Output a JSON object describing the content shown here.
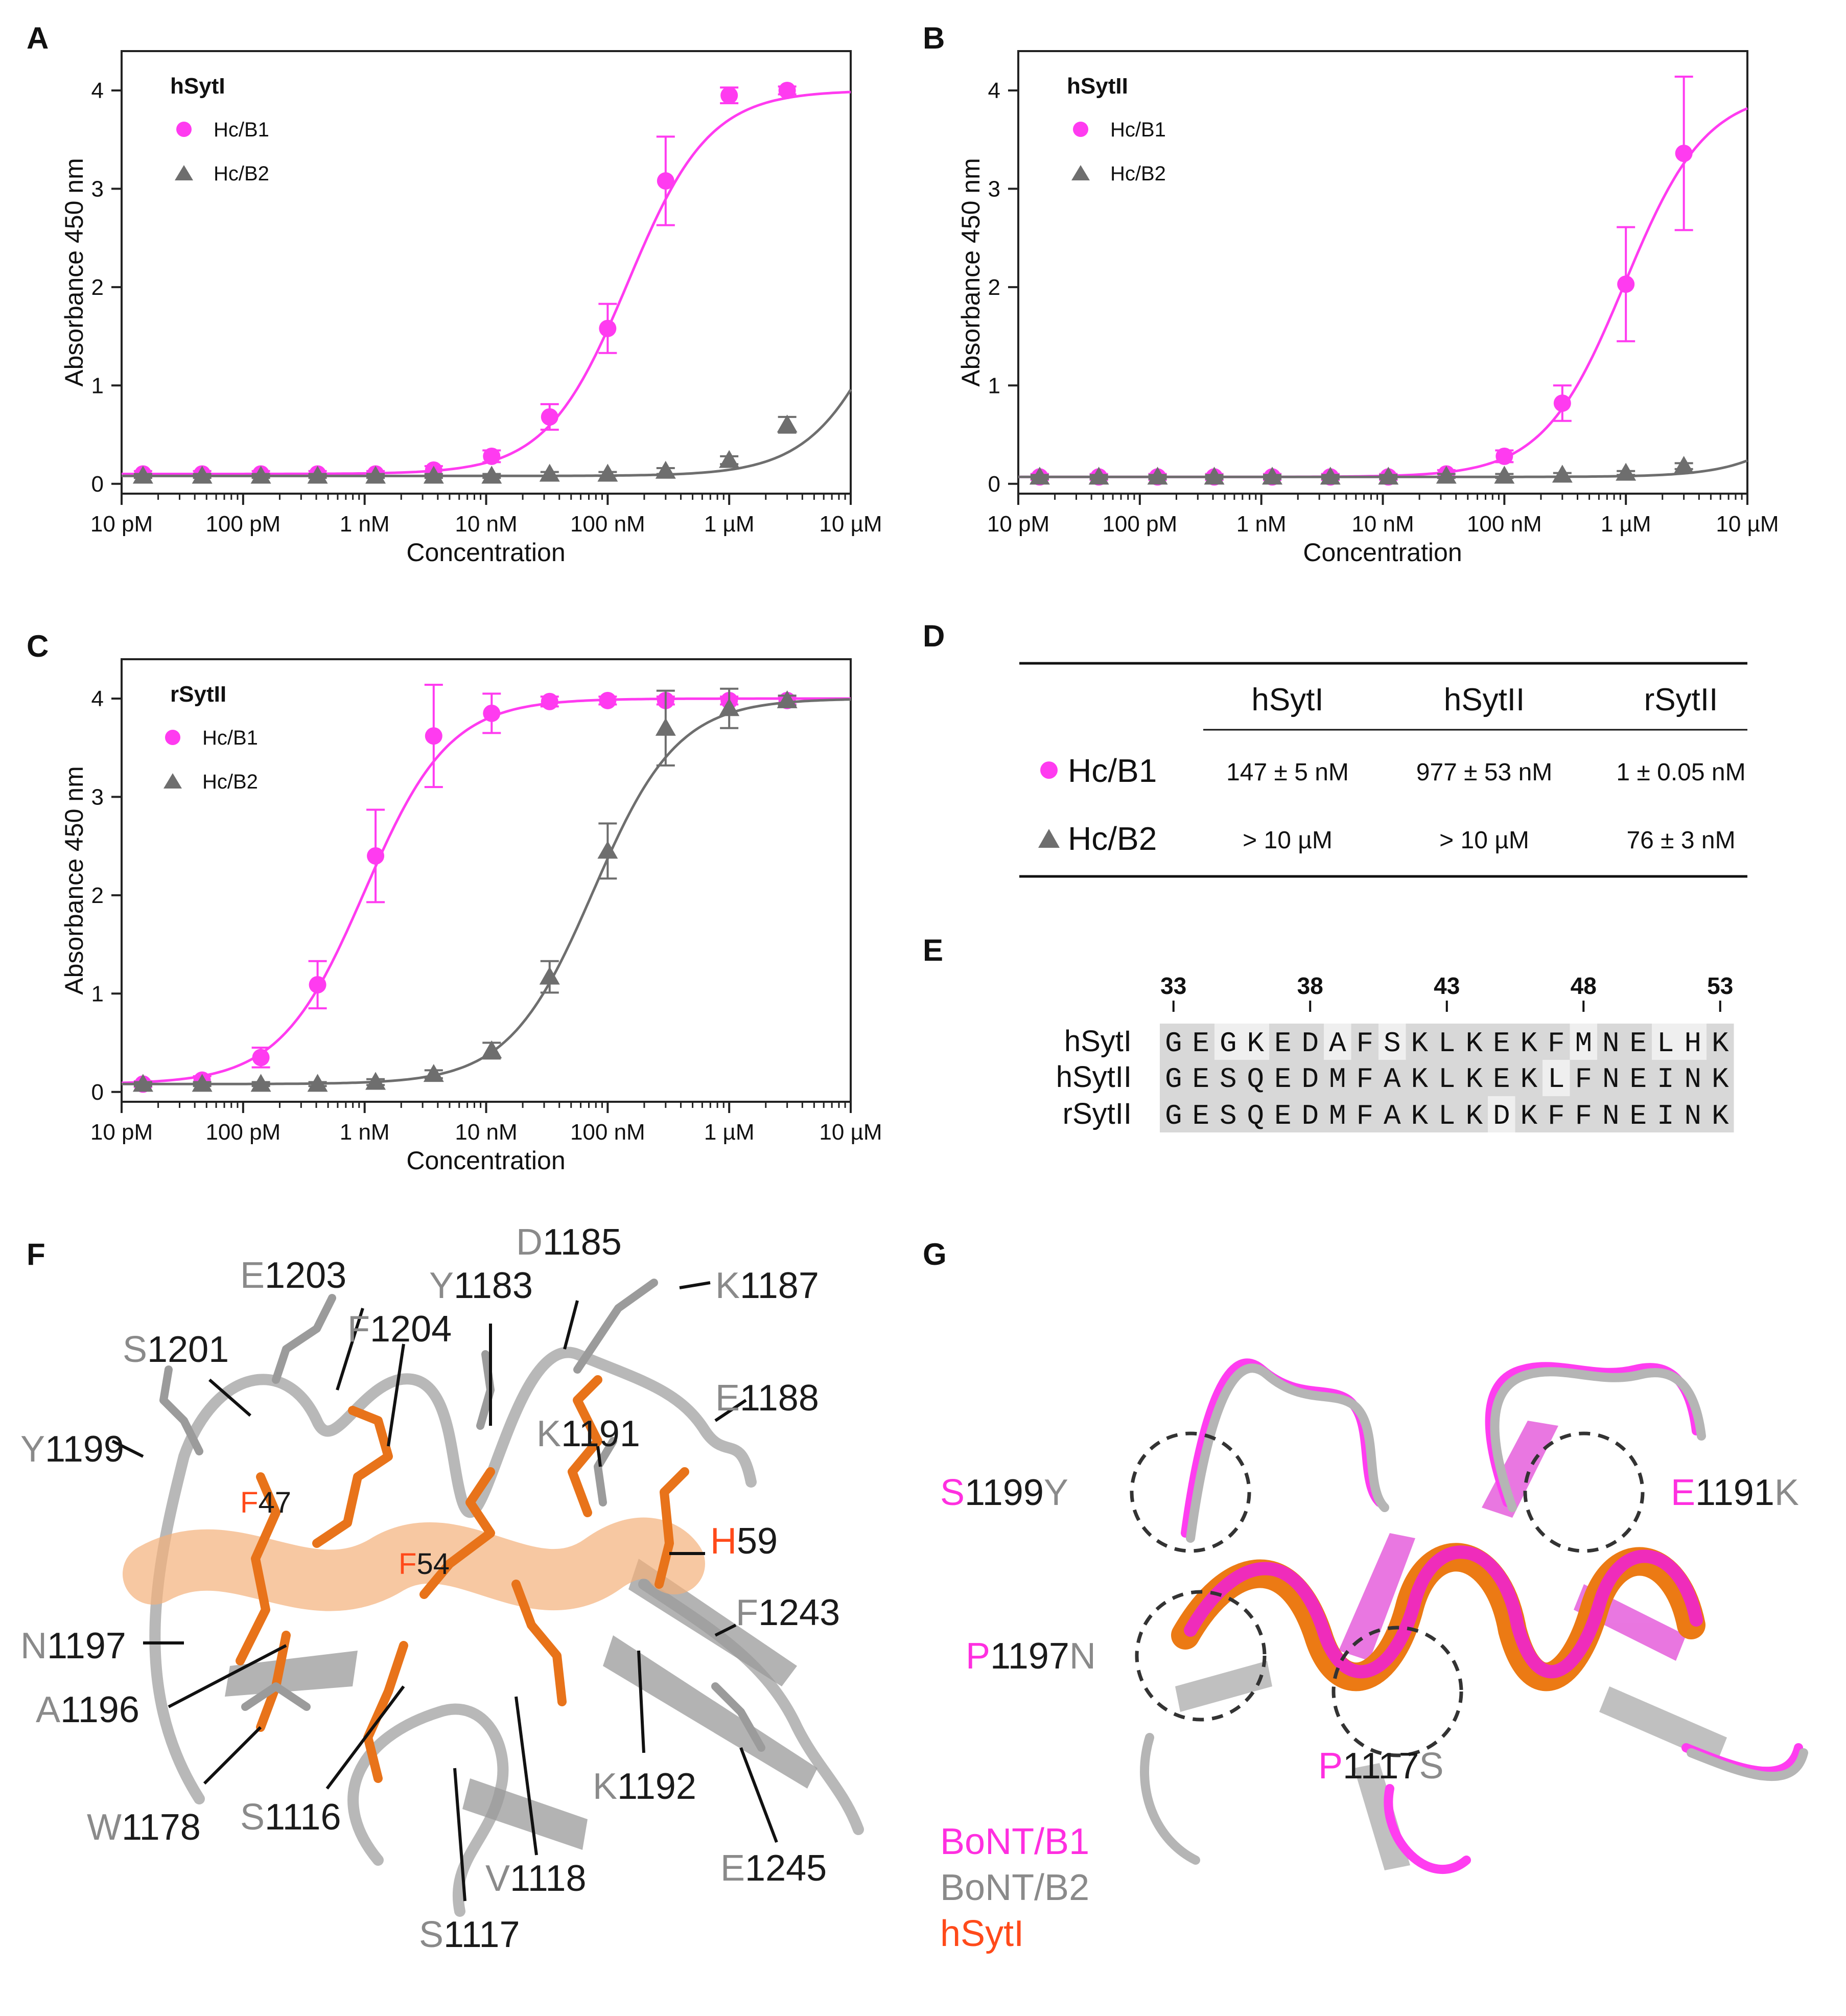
{
  "panels": {
    "A": "A",
    "B": "B",
    "C": "C",
    "D": "D",
    "E": "E",
    "F": "F",
    "G": "G"
  },
  "colors": {
    "hcb1": "#ff3bf0",
    "hcb2": "#6e6e6e",
    "orange": "#ee7b1c",
    "hsyt_label": "#ff4a1a",
    "grey_label": "#8a8a8a",
    "magenta_label": "#ff2fe0"
  },
  "chart_data": [
    {
      "panel": "A",
      "type": "scatter",
      "title": "hSytI",
      "xlabel": "Concentration",
      "ylabel": "Absorbance 450 nm",
      "xscale": "log",
      "xlim_nM": [
        0.01,
        10000
      ],
      "ylim": [
        -0.1,
        4.4
      ],
      "x_ticks": [
        "10 pM",
        "100 pM",
        "1 nM",
        "10 nM",
        "100 nM",
        "1 µM",
        "10 µM"
      ],
      "y_ticks": [
        "0",
        "1",
        "2",
        "3",
        "4"
      ],
      "legend": "top-left",
      "series": [
        {
          "name": "Hc/B1",
          "marker": "circle",
          "color": "hcb1",
          "x_nM": [
            0.015,
            0.046,
            0.14,
            0.41,
            1.23,
            3.7,
            11.1,
            33.3,
            100,
            300,
            1000,
            3000
          ],
          "y": [
            0.1,
            0.1,
            0.1,
            0.1,
            0.1,
            0.14,
            0.28,
            0.68,
            1.58,
            3.08,
            3.95,
            4.0
          ],
          "err": [
            0.03,
            0.03,
            0.03,
            0.03,
            0.03,
            0.04,
            0.06,
            0.13,
            0.25,
            0.45,
            0.08,
            0.04
          ],
          "fit": {
            "bottom": 0.1,
            "top": 4.0,
            "ec50_nM": 147,
            "hill": 1.3
          }
        },
        {
          "name": "Hc/B2",
          "marker": "triangle",
          "color": "hcb2",
          "x_nM": [
            0.015,
            0.046,
            0.14,
            0.41,
            1.23,
            3.7,
            11.1,
            33.3,
            100,
            300,
            1000,
            3000
          ],
          "y": [
            0.08,
            0.08,
            0.08,
            0.08,
            0.08,
            0.08,
            0.08,
            0.1,
            0.1,
            0.13,
            0.24,
            0.6
          ],
          "err": [
            0.02,
            0.02,
            0.02,
            0.02,
            0.02,
            0.02,
            0.02,
            0.02,
            0.02,
            0.03,
            0.04,
            0.08
          ],
          "fit": {
            "bottom": 0.08,
            "top": 4.0,
            "ec50_nM": 27000,
            "hill": 1.25
          }
        }
      ]
    },
    {
      "panel": "B",
      "type": "scatter",
      "title": "hSytII",
      "xlabel": "Concentration",
      "ylabel": "Absorbance 450 nm",
      "xscale": "log",
      "xlim_nM": [
        0.01,
        10000
      ],
      "ylim": [
        -0.1,
        4.4
      ],
      "x_ticks": [
        "10 pM",
        "100 pM",
        "1 nM",
        "10 nM",
        "100 nM",
        "1 µM",
        "10 µM"
      ],
      "y_ticks": [
        "0",
        "1",
        "2",
        "3",
        "4"
      ],
      "legend": "top-left",
      "series": [
        {
          "name": "Hc/B1",
          "marker": "circle",
          "color": "hcb1",
          "x_nM": [
            0.015,
            0.046,
            0.14,
            0.41,
            1.23,
            3.7,
            11.1,
            33.3,
            100,
            300,
            1000,
            3000
          ],
          "y": [
            0.07,
            0.07,
            0.07,
            0.07,
            0.07,
            0.07,
            0.07,
            0.1,
            0.28,
            0.82,
            2.03,
            3.36
          ],
          "err": [
            0.03,
            0.03,
            0.03,
            0.03,
            0.03,
            0.03,
            0.03,
            0.04,
            0.06,
            0.18,
            0.58,
            0.78
          ],
          "fit": {
            "bottom": 0.07,
            "top": 4.0,
            "ec50_nM": 977,
            "hill": 1.3
          }
        },
        {
          "name": "Hc/B2",
          "marker": "triangle",
          "color": "hcb2",
          "x_nM": [
            0.015,
            0.046,
            0.14,
            0.41,
            1.23,
            3.7,
            11.1,
            33.3,
            100,
            300,
            1000,
            3000
          ],
          "y": [
            0.07,
            0.07,
            0.07,
            0.07,
            0.07,
            0.07,
            0.07,
            0.08,
            0.08,
            0.09,
            0.11,
            0.18
          ],
          "err": [
            0.02,
            0.02,
            0.02,
            0.02,
            0.02,
            0.02,
            0.02,
            0.02,
            0.02,
            0.02,
            0.02,
            0.03
          ],
          "fit": {
            "bottom": 0.07,
            "top": 4.0,
            "ec50_nM": 110000,
            "hill": 1.3
          }
        }
      ]
    },
    {
      "panel": "C",
      "type": "scatter",
      "title": "rSytII",
      "xlabel": "Concentration",
      "ylabel": "Absorbance 450 nm",
      "xscale": "log",
      "xlim_nM": [
        0.01,
        10000
      ],
      "ylim": [
        -0.1,
        4.4
      ],
      "x_ticks": [
        "10 pM",
        "100 pM",
        "1 nM",
        "10 nM",
        "100 nM",
        "1 µM",
        "10 µM"
      ],
      "y_ticks": [
        "0",
        "1",
        "2",
        "3",
        "4"
      ],
      "legend": "top-left",
      "series": [
        {
          "name": "Hc/B1",
          "marker": "circle",
          "color": "hcb1",
          "x_nM": [
            0.015,
            0.046,
            0.14,
            0.41,
            1.23,
            3.7,
            11.1,
            33.3,
            100,
            300,
            1000,
            3000
          ],
          "y": [
            0.08,
            0.12,
            0.35,
            1.09,
            2.4,
            3.62,
            3.85,
            3.97,
            3.98,
            3.98,
            3.98,
            3.98
          ],
          "err": [
            0.03,
            0.04,
            0.1,
            0.24,
            0.47,
            0.52,
            0.2,
            0.05,
            0.04,
            0.04,
            0.04,
            0.04
          ],
          "fit": {
            "bottom": 0.08,
            "top": 4.0,
            "ec50_nM": 1,
            "hill": 1.25
          }
        },
        {
          "name": "Hc/B2",
          "marker": "triangle",
          "color": "hcb2",
          "x_nM": [
            0.015,
            0.046,
            0.14,
            0.41,
            1.23,
            3.7,
            11.1,
            33.3,
            100,
            300,
            1000,
            3000
          ],
          "y": [
            0.08,
            0.08,
            0.08,
            0.08,
            0.1,
            0.18,
            0.42,
            1.17,
            2.45,
            3.7,
            3.9,
            3.98
          ],
          "err": [
            0.02,
            0.02,
            0.02,
            0.02,
            0.03,
            0.04,
            0.08,
            0.16,
            0.28,
            0.38,
            0.2,
            0.05
          ],
          "fit": {
            "bottom": 0.08,
            "top": 4.0,
            "ec50_nM": 76,
            "hill": 1.25
          }
        }
      ]
    },
    {
      "panel": "D",
      "type": "table",
      "columns": [
        "",
        "hSytI",
        "hSytII",
        "rSytII"
      ],
      "rows": [
        {
          "name": "Hc/B1",
          "marker": "circle",
          "color": "hcb1",
          "cells": [
            "147 ± 5 nM",
            "977 ± 53 nM",
            "1 ± 0.05 nM"
          ]
        },
        {
          "name": "Hc/B2",
          "marker": "triangle",
          "color": "hcb2",
          "cells": [
            "> 10 µM",
            "> 10 µM",
            "76 ± 3 nM"
          ]
        }
      ]
    }
  ],
  "alignment": {
    "numbers": [
      "33",
      "38",
      "43",
      "48",
      "53"
    ],
    "rows": [
      {
        "name": "hSytI",
        "seq": "GEGKEDAFSKLKEKFMNELHK"
      },
      {
        "name": "hSytII",
        "seq": "GESQEDMFAKLKEKLFNEINK"
      },
      {
        "name": "rSytII",
        "seq": "GESQEDMFAKLKDKFFNEINK"
      }
    ]
  },
  "structure_f": {
    "labels": [
      {
        "pre": "D",
        "rest": "1185"
      },
      {
        "pre": "E",
        "rest": "1203"
      },
      {
        "pre": "Y",
        "rest": "1183"
      },
      {
        "pre": "K",
        "rest": "1187"
      },
      {
        "pre": "F",
        "rest": "1204"
      },
      {
        "pre": "S",
        "rest": "1201"
      },
      {
        "pre": "E",
        "rest": "1188"
      },
      {
        "pre": "K",
        "rest": "1191"
      },
      {
        "pre": "Y",
        "rest": "1199"
      },
      {
        "pre": "F",
        "rest": "47"
      },
      {
        "pre": "F",
        "rest": "54"
      },
      {
        "pre": "H",
        "rest": "59"
      },
      {
        "pre": "F",
        "rest": "1243"
      },
      {
        "pre": "N",
        "rest": "1197"
      },
      {
        "pre": "A",
        "rest": "1196"
      },
      {
        "pre": "K",
        "rest": "1192"
      },
      {
        "pre": "S",
        "rest": "1116"
      },
      {
        "pre": "W",
        "rest": "1178"
      },
      {
        "pre": "V",
        "rest": "1118"
      },
      {
        "pre": "E",
        "rest": "1245"
      },
      {
        "pre": "S",
        "rest": "1117"
      }
    ]
  },
  "structure_g": {
    "labels": [
      {
        "pre": "S",
        "mid": "1199",
        "post": "Y"
      },
      {
        "pre": "E",
        "mid": "1191",
        "post": "K"
      },
      {
        "pre": "P",
        "mid": "1197",
        "post": "N"
      },
      {
        "pre": "P",
        "mid": "1117",
        "post": "S"
      }
    ],
    "legend": [
      "BoNT/B1",
      "BoNT/B2",
      "hSytI"
    ]
  }
}
